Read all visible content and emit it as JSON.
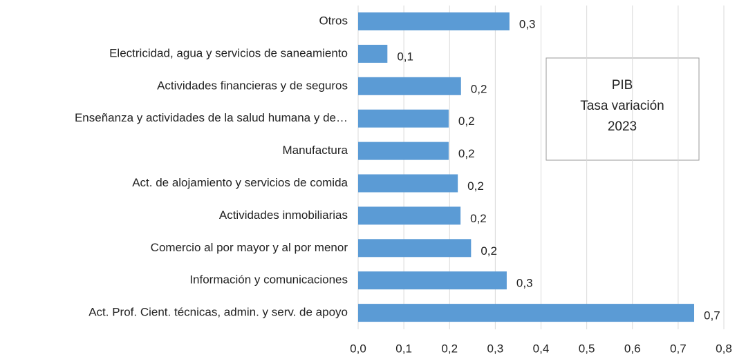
{
  "chart_data": {
    "type": "barh",
    "categories": [
      "Otros",
      "Electricidad, agua y servicios de saneamiento",
      "Actividades financieras y de seguros",
      "Enseñanza y actividades de la salud humana y de…",
      "Manufactura",
      "Act. de alojamiento y servicios de comida",
      "Actividades inmobiliarias",
      "Comercio al por mayor y al por menor",
      "Información y comunicaciones",
      "Act. Prof. Cient. técnicas, admin. y serv. de apoyo"
    ],
    "values": [
      0.331,
      0.064,
      0.225,
      0.198,
      0.198,
      0.218,
      0.224,
      0.247,
      0.325,
      0.735
    ],
    "value_labels": [
      "0,3",
      "0,1",
      "0,2",
      "0,2",
      "0,2",
      "0,2",
      "0,2",
      "0,2",
      "0,3",
      "0,7"
    ],
    "color": "#5b9bd5",
    "xlim": [
      0,
      0.8
    ],
    "xticks": [
      {
        "value": 0,
        "label": "0,0"
      },
      {
        "value": 0.1,
        "label": "0,1"
      },
      {
        "value": 0.2,
        "label": "0,2"
      },
      {
        "value": 0.3,
        "label": "0,3"
      },
      {
        "value": 0.4,
        "label": "0,4"
      },
      {
        "value": 0.5,
        "label": "0,5"
      },
      {
        "value": 0.6,
        "label": "0,6"
      },
      {
        "value": 0.7,
        "label": "0,7"
      },
      {
        "value": 0.8,
        "label": "0,8"
      }
    ],
    "grid": true,
    "annotation": [
      "PIB",
      "Tasa variación",
      "2023"
    ]
  }
}
